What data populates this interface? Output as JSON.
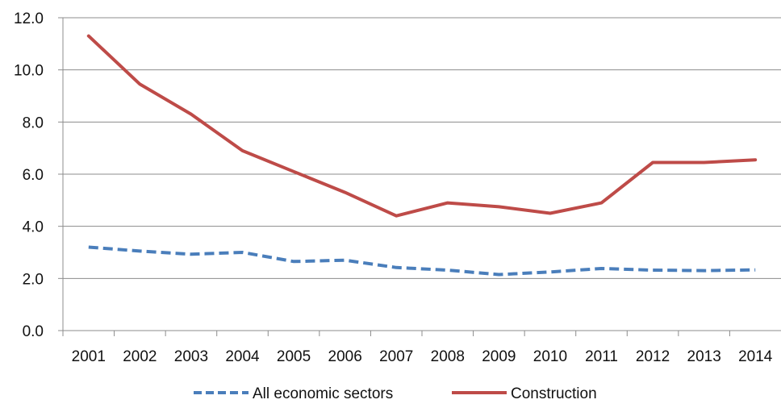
{
  "chart_data": {
    "type": "line",
    "title": "",
    "xlabel": "",
    "ylabel": "",
    "categories": [
      "2001",
      "2002",
      "2003",
      "2004",
      "2005",
      "2006",
      "2007",
      "2008",
      "2009",
      "2010",
      "2011",
      "2012",
      "2013",
      "2014"
    ],
    "ylim": [
      0,
      12
    ],
    "yticks": [
      "0.0",
      "2.0",
      "4.0",
      "6.0",
      "8.0",
      "10.0",
      "12.0"
    ],
    "grid": true,
    "legend_position": "bottom",
    "series": [
      {
        "name": "All economic sectors",
        "color": "#4a7ebb",
        "style": "dashed",
        "values": [
          3.2,
          3.05,
          2.93,
          3.0,
          2.65,
          2.7,
          2.42,
          2.32,
          2.15,
          2.25,
          2.38,
          2.32,
          2.3,
          2.33
        ]
      },
      {
        "name": "Construction",
        "color": "#be4b48",
        "style": "solid",
        "values": [
          11.3,
          9.45,
          8.3,
          6.9,
          6.1,
          5.3,
          4.4,
          4.9,
          4.75,
          4.5,
          4.9,
          6.45,
          6.45,
          6.55
        ]
      }
    ]
  }
}
